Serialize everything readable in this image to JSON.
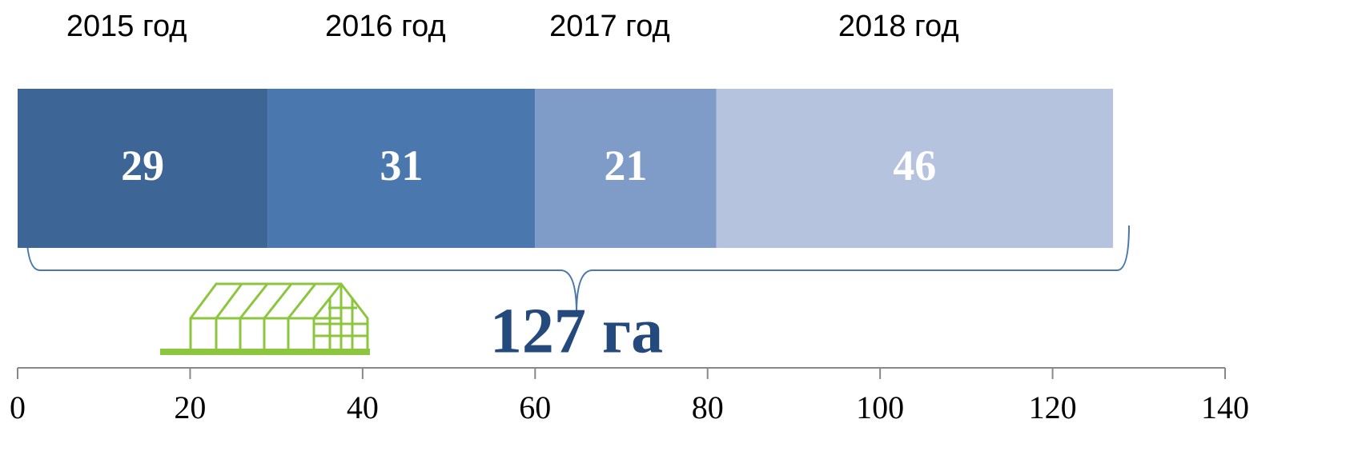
{
  "chart_data": {
    "type": "bar",
    "orientation": "horizontal",
    "stacked": true,
    "series": [
      {
        "name": "2015 год",
        "color": "#3d6595",
        "values": [
          29
        ]
      },
      {
        "name": "2016 год",
        "color": "#4a78ae",
        "values": [
          31
        ]
      },
      {
        "name": "2017 год",
        "color": "#7f9cc8",
        "values": [
          21
        ]
      },
      {
        "name": "2018 год",
        "color": "#b5c3de",
        "values": [
          46
        ]
      }
    ],
    "annotation": "127 га",
    "xlim": [
      0,
      140
    ],
    "xticks": [
      0,
      20,
      40,
      60,
      80,
      100,
      120,
      140
    ]
  }
}
